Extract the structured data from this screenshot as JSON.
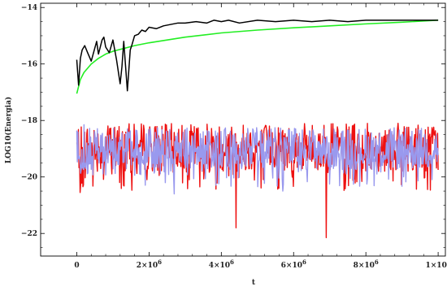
{
  "chart_data": {
    "type": "line",
    "title": "",
    "xlabel": "t",
    "ylabel": "LOG10(Energia)",
    "xlim": [
      -100000,
      1020000
    ],
    "ylim": [
      -22.8,
      -13.85
    ],
    "x_ticks": [
      {
        "value": 0,
        "label": "0",
        "exp": ""
      },
      {
        "value": 200000,
        "label": "2×10",
        "exp": "6"
      },
      {
        "value": 400000,
        "label": "4×10",
        "exp": "6"
      },
      {
        "value": 600000,
        "label": "6×10",
        "exp": "6"
      },
      {
        "value": 800000,
        "label": "8×10",
        "exp": "6"
      },
      {
        "value": 1000000,
        "label": "1×10",
        "exp": "7"
      }
    ],
    "y_ticks": [
      {
        "value": -14,
        "label": "−14"
      },
      {
        "value": -16,
        "label": "−16"
      },
      {
        "value": -18,
        "label": "−18"
      },
      {
        "value": -20,
        "label": "−20"
      },
      {
        "value": -22,
        "label": "−22"
      }
    ],
    "grid": false,
    "colors": {
      "black": "#000000",
      "green": "#22ee22",
      "red": "#ee1111",
      "blue": "#9999ee"
    },
    "series": [
      {
        "color": "black",
        "x": [
          0,
          5000,
          10000,
          15000,
          22000,
          30000,
          40000,
          55000,
          60000,
          70000,
          75000,
          80000,
          90000,
          100000,
          110000,
          120000,
          125000,
          130000,
          140000,
          148000,
          152000,
          160000,
          170000,
          180000,
          190000,
          200000,
          220000,
          240000,
          260000,
          280000,
          300000,
          330000,
          360000,
          380000,
          400000,
          420000,
          450000,
          500000,
          550000,
          600000,
          650000,
          700000,
          750000,
          800000,
          850000,
          900000,
          930000,
          960000,
          1000000
        ],
        "y": [
          -15.85,
          -16.75,
          -15.8,
          -15.5,
          -15.35,
          -15.6,
          -15.9,
          -15.2,
          -15.65,
          -15.15,
          -15.05,
          -15.4,
          -15.6,
          -15.15,
          -15.85,
          -16.7,
          -16.1,
          -15.2,
          -16.95,
          -15.5,
          -15.35,
          -15.0,
          -14.95,
          -14.8,
          -14.85,
          -14.7,
          -14.75,
          -14.65,
          -14.6,
          -14.55,
          -14.55,
          -14.5,
          -14.55,
          -14.45,
          -14.5,
          -14.45,
          -14.55,
          -14.45,
          -14.5,
          -14.45,
          -14.5,
          -14.45,
          -14.5,
          -14.45,
          -14.45,
          -14.45,
          -14.45,
          -14.45,
          -14.45
        ]
      },
      {
        "color": "green",
        "x": [
          0,
          10000,
          20000,
          40000,
          60000,
          80000,
          100000,
          130000,
          160000,
          200000,
          250000,
          300000,
          400000,
          500000,
          600000,
          700000,
          800000,
          900000,
          1000000
        ],
        "y": [
          -17.05,
          -16.55,
          -16.3,
          -16.0,
          -15.8,
          -15.65,
          -15.55,
          -15.45,
          -15.35,
          -15.25,
          -15.15,
          -15.05,
          -14.9,
          -14.8,
          -14.72,
          -14.65,
          -14.58,
          -14.52,
          -14.45
        ]
      },
      {
        "color": "red",
        "x_start": 0,
        "x_end": 1000000,
        "y_center": -18.95,
        "y_spread": 0.85,
        "points": 650,
        "spikes": [
          {
            "x": 10000,
            "y": -20.55
          },
          {
            "x": 130000,
            "y": -20.3
          },
          {
            "x": 340000,
            "y": -20.35
          },
          {
            "x": 440000,
            "y": -21.8
          },
          {
            "x": 690000,
            "y": -22.15
          },
          {
            "x": 560000,
            "y": -20.4
          }
        ]
      },
      {
        "color": "blue",
        "x_start": 0,
        "x_end": 1000000,
        "y_center": -19.0,
        "y_spread": 0.75,
        "points": 650,
        "spikes": [
          {
            "x": 20000,
            "y": -18.15
          },
          {
            "x": 270000,
            "y": -20.6
          },
          {
            "x": 570000,
            "y": -20.5
          },
          {
            "x": 700000,
            "y": -20.25
          }
        ]
      }
    ]
  }
}
